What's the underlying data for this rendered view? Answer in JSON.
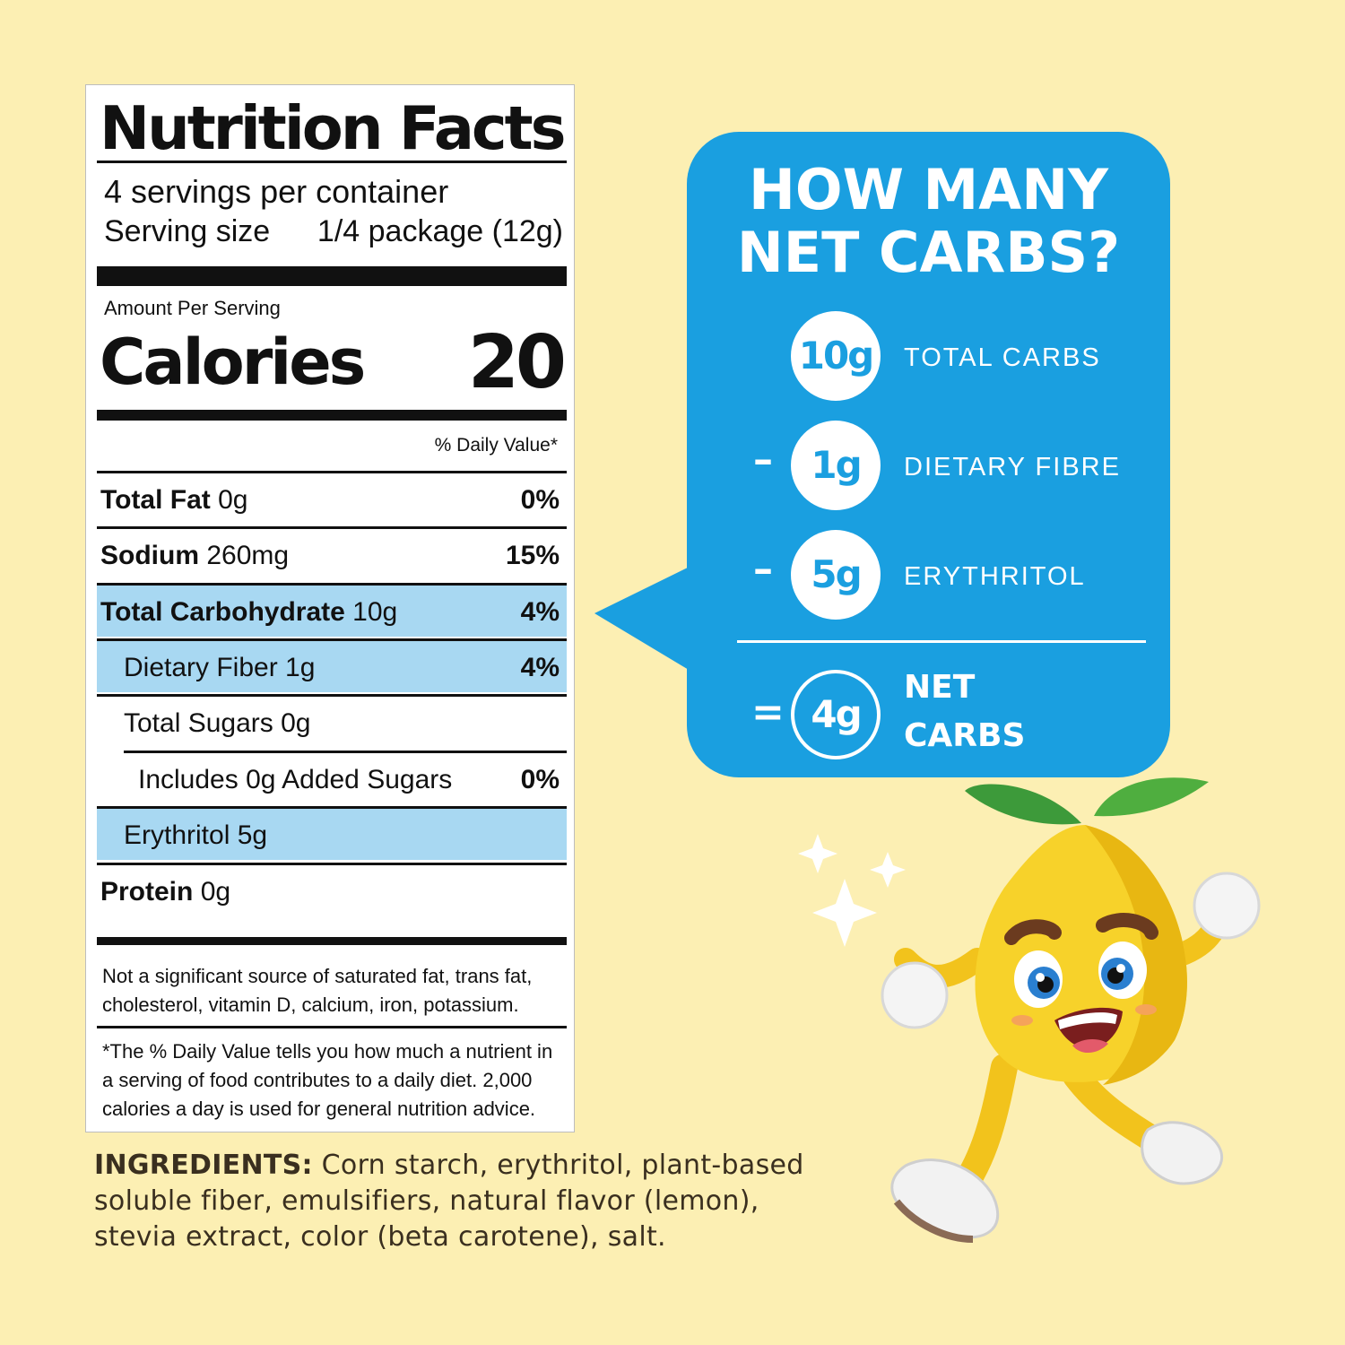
{
  "nutrition": {
    "title": "Nutrition Facts",
    "servings_per_container": "4 servings per container",
    "serving_size_label": "Serving size",
    "serving_size_value": "1/4 package (12g)",
    "amount_per_serving": "Amount Per Serving",
    "calories_label": "Calories",
    "calories_value": "20",
    "daily_value_header": "% Daily Value*",
    "rows": [
      {
        "name": "Total Fat",
        "amount": "0g",
        "dv": "0%",
        "highlight": false
      },
      {
        "name": "Sodium",
        "amount": "260mg",
        "dv": "15%",
        "highlight": false
      },
      {
        "name": "Total Carbohydrate",
        "amount": "10g",
        "dv": "4%",
        "highlight": true
      },
      {
        "name": "Dietary Fiber 1g",
        "dv": "4%",
        "highlight": true
      },
      {
        "name": "Total Sugars 0g",
        "dv": "",
        "highlight": false
      },
      {
        "name": "Includes 0g Added Sugars",
        "dv": "0%",
        "highlight": false
      },
      {
        "name": "Erythritol 5g",
        "dv": "",
        "highlight": true
      },
      {
        "name": "Protein",
        "amount": "0g",
        "dv": "",
        "highlight": false
      }
    ],
    "footnote_1_line1": "Not a significant source of saturated fat, trans fat,",
    "footnote_1_line2": "cholesterol, vitamin D, calcium, iron, potassium.",
    "footnote_2_line1": "*The % Daily Value tells you how much a nutrient in",
    "footnote_2_line2": "a serving of food contributes to a daily diet. 2,000",
    "footnote_2_line3": "calories a day is used for general nutrition advice."
  },
  "ingredients": {
    "label": "INGREDIENTS:",
    "text": "Corn starch, erythritol, plant-based soluble fiber, emulsifiers, natural flavor (lemon), stevia extract, color (beta carotene), salt."
  },
  "net_carbs": {
    "title_line1": "HOW MANY",
    "title_line2": "NET CARBS?",
    "items": [
      {
        "op": "",
        "value": "10g",
        "label": "TOTAL CARBS"
      },
      {
        "op": "–",
        "value": "1g",
        "label": "DIETARY FIBRE"
      },
      {
        "op": "–",
        "value": "5g",
        "label": "ERYTHRITOL"
      }
    ],
    "result_op": "=",
    "result_value": "4g",
    "result_label_line1": "NET",
    "result_label_line2": "CARBS"
  },
  "colors": {
    "background": "#fcefb3",
    "bubble_blue": "#1a9fe0",
    "highlight_blue": "#a8d8f2",
    "ingredients_text": "#3a2f1f"
  },
  "mascot": {
    "icon": "lemon-mascot-icon"
  }
}
